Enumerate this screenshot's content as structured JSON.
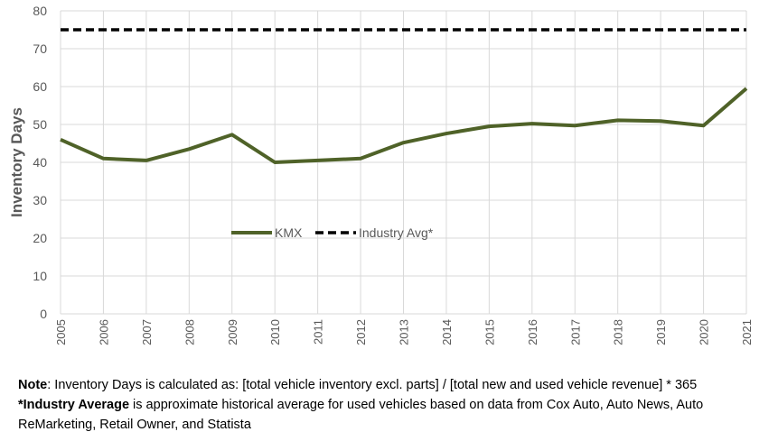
{
  "chart_data": {
    "type": "line",
    "ylabel": "Inventory Days",
    "ylim": [
      0,
      80
    ],
    "yticks": [
      0,
      10,
      20,
      30,
      40,
      50,
      60,
      70,
      80
    ],
    "x": [
      "2005",
      "2006",
      "2007",
      "2008",
      "2009",
      "2010",
      "2011",
      "2012",
      "2013",
      "2014",
      "2015",
      "2016",
      "2017",
      "2018",
      "2019",
      "2020",
      "2021"
    ],
    "series": [
      {
        "name": "KMX",
        "values": [
          46,
          41,
          40.5,
          43.5,
          47.3,
          40,
          40.5,
          41,
          45.2,
          47.6,
          49.5,
          50.2,
          49.7,
          51.1,
          50.9,
          49.7,
          59.5
        ],
        "color": "#4f6228",
        "style": "solid"
      },
      {
        "name": "Industry Avg*",
        "values": [
          75,
          75,
          75,
          75,
          75,
          75,
          75,
          75,
          75,
          75,
          75,
          75,
          75,
          75,
          75,
          75,
          75
        ],
        "color": "#000000",
        "style": "dashed"
      }
    ],
    "legend_placement": "center-left",
    "grid": true
  },
  "notes": {
    "line1_bold": "Note",
    "line1": ": Inventory Days is calculated as: [total vehicle inventory excl. parts] / [total new and used vehicle revenue]  * 365",
    "line2_bold": "*Industry Average",
    "line2": " is approximate historical average for used vehicles based on data from Cox Auto, Auto News, Auto ReMarketing, Retail Owner, and Statista"
  }
}
